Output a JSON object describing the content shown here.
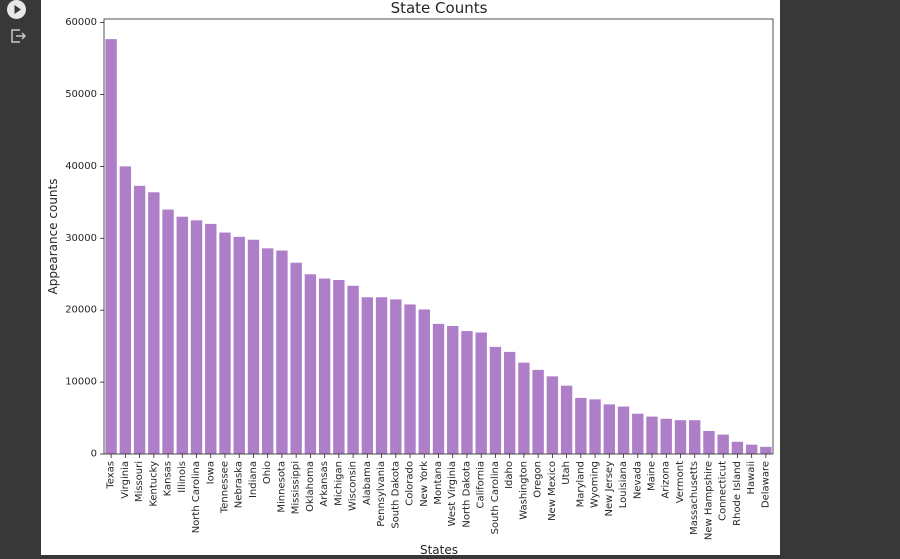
{
  "ui": {
    "run_icon": "play-circle-icon",
    "output_icon": "output-export-icon"
  },
  "chart_data": {
    "type": "bar",
    "title": "State Counts",
    "xlabel": "States",
    "ylabel": "Appearance counts",
    "ylim": [
      0,
      60500
    ],
    "yticks": [
      0,
      10000,
      20000,
      30000,
      40000,
      50000,
      60000
    ],
    "bar_color": "#af7ec9",
    "grid": false,
    "categories": [
      "Texas",
      "Virginia",
      "Missouri",
      "Kentucky",
      "Kansas",
      "Illinois",
      "North Carolina",
      "Iowa",
      "Tennessee",
      "Nebraska",
      "Indiana",
      "Ohio",
      "Minnesota",
      "Mississippi",
      "Oklahoma",
      "Arkansas",
      "Michigan",
      "Wisconsin",
      "Alabama",
      "Pennsylvania",
      "South Dakota",
      "Colorado",
      "New York",
      "Montana",
      "West Virginia",
      "North Dakota",
      "California",
      "South Carolina",
      "Idaho",
      "Washington",
      "Oregon",
      "New Mexico",
      "Utah",
      "Maryland",
      "Wyoming",
      "New Jersey",
      "Louisiana",
      "Nevada",
      "Maine",
      "Arizona",
      "Vermont",
      "Massachusetts",
      "New Hampshire",
      "Connecticut",
      "Rhode Island",
      "Hawaii",
      "Delaware"
    ],
    "values": [
      57700,
      40000,
      37300,
      36400,
      34000,
      33000,
      32500,
      32000,
      30800,
      30200,
      29800,
      28600,
      28300,
      26600,
      25000,
      24400,
      24200,
      23400,
      21800,
      21800,
      21500,
      20800,
      20100,
      18100,
      17800,
      17100,
      16900,
      14900,
      14200,
      12700,
      11700,
      10800,
      9500,
      7800,
      7600,
      6900,
      6600,
      5600,
      5200,
      4900,
      4700,
      4700,
      3200,
      2700,
      1700,
      1300,
      1000
    ]
  }
}
